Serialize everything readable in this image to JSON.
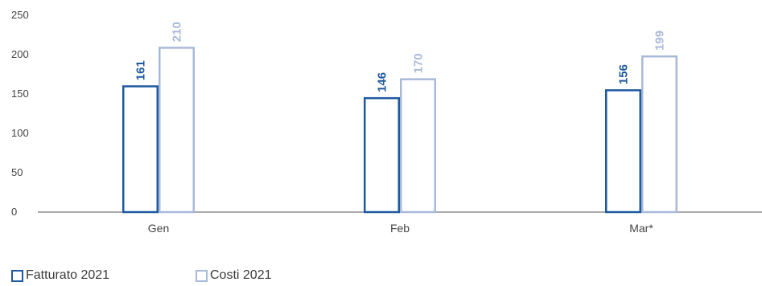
{
  "chart_data": {
    "type": "bar",
    "categories": [
      "Gen",
      "Feb",
      "Mar*"
    ],
    "series": [
      {
        "name": "Fatturato 2021",
        "values": [
          161,
          146,
          156
        ],
        "color": "#1f5aa0"
      },
      {
        "name": "Costi 2021",
        "values": [
          210,
          170,
          199
        ],
        "color": "#a9b9d8"
      }
    ],
    "y_ticks": [
      "0",
      "50",
      "100",
      "150",
      "200",
      "250"
    ],
    "ylim": [
      0,
      250
    ],
    "grid": false,
    "legend_position": "bottom-left"
  }
}
